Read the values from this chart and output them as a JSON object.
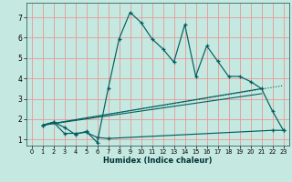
{
  "xlabel": "Humidex (Indice chaleur)",
  "bg_color": "#c5e8e0",
  "grid_color": "#e89898",
  "line_color": "#006060",
  "xlim": [
    -0.5,
    23.5
  ],
  "ylim": [
    0.7,
    7.7
  ],
  "xticks": [
    0,
    1,
    2,
    3,
    4,
    5,
    6,
    7,
    8,
    9,
    10,
    11,
    12,
    13,
    14,
    15,
    16,
    17,
    18,
    19,
    20,
    21,
    22,
    23
  ],
  "yticks": [
    1,
    2,
    3,
    4,
    5,
    6,
    7
  ],
  "main_x": [
    1,
    2,
    3,
    4,
    5,
    6,
    7,
    8,
    9,
    10,
    11,
    12,
    13,
    14,
    15,
    16,
    17,
    18,
    19,
    20,
    21,
    22,
    23
  ],
  "main_y": [
    1.7,
    1.85,
    1.6,
    1.25,
    1.4,
    0.85,
    3.5,
    5.95,
    7.25,
    6.75,
    5.95,
    5.45,
    4.8,
    6.65,
    4.1,
    5.6,
    4.85,
    4.1,
    4.1,
    3.85,
    3.5,
    2.4,
    1.45
  ],
  "low_x": [
    1,
    2,
    3,
    4,
    5,
    6,
    7,
    22,
    23
  ],
  "low_y": [
    1.7,
    1.85,
    1.3,
    1.3,
    1.35,
    1.1,
    1.05,
    1.45,
    1.45
  ],
  "trend1_x": [
    1,
    23
  ],
  "trend1_y": [
    1.7,
    3.65
  ],
  "trend2_x": [
    1,
    21
  ],
  "trend2_y": [
    1.7,
    3.5
  ],
  "trend3_x": [
    1,
    21
  ],
  "trend3_y": [
    1.7,
    3.25
  ]
}
